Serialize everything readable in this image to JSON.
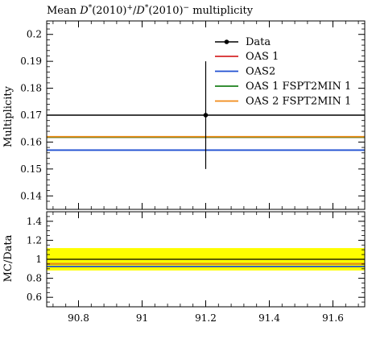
{
  "chart_data": [
    {
      "type": "line",
      "panel": "main",
      "title": "Mean D*(2010)+/D*(2010)− multiplicity",
      "title_parts": {
        "prefix": "Mean ",
        "d1": "D",
        "star1": "*",
        "mid1": "(2010)",
        "sup1": "+",
        "slash": "/",
        "d2": "D",
        "star2": "*",
        "mid2": "(2010)",
        "sup2": "−",
        "suffix": " multiplicity"
      },
      "ylabel": "Multiplicity",
      "xlim": [
        90.7,
        91.7
      ],
      "ylim": [
        0.135,
        0.205
      ],
      "yticks": [
        0.14,
        0.15,
        0.16,
        0.17,
        0.18,
        0.19,
        0.2
      ],
      "ytick_labels": [
        "0.14",
        "0.15",
        "0.16",
        "0.17",
        "0.18",
        "0.19",
        "0.2"
      ],
      "grid": false,
      "legend_position": "top-right",
      "data_point": {
        "name": "Data",
        "x": 91.2,
        "y": 0.17,
        "yerr_low": 0.15,
        "yerr_high": 0.19,
        "color": "#000000"
      },
      "series": [
        {
          "name": "OAS 1",
          "y": 0.1618,
          "color": "#d62728"
        },
        {
          "name": "OAS2",
          "y": 0.157,
          "color": "#1f4fd1"
        },
        {
          "name": "OAS 1 FSPT2MIN 1",
          "y": 0.1618,
          "color": "#1a7f1a"
        },
        {
          "name": "OAS 2 FSPT2MIN 1",
          "y": 0.162,
          "color": "#f08a16"
        }
      ],
      "legend": {
        "data_label": "Data",
        "series_labels": [
          "OAS 1",
          "OAS2",
          "OAS 1 FSPT2MIN 1",
          "OAS 2 FSPT2MIN 1"
        ]
      }
    },
    {
      "type": "line",
      "panel": "ratio",
      "ylabel": "MC/Data",
      "xlim": [
        90.7,
        91.7
      ],
      "ylim": [
        0.5,
        1.5
      ],
      "yticks": [
        0.6,
        0.8,
        1.0,
        1.2,
        1.4
      ],
      "ytick_labels": [
        "0.6",
        "0.8",
        "1",
        "1.2",
        "1.4"
      ],
      "xticks": [
        90.8,
        91.0,
        91.2,
        91.4,
        91.6
      ],
      "xtick_labels": [
        "90.8",
        "91",
        "91.2",
        "91.4",
        "91.6"
      ],
      "band": {
        "low": 0.882,
        "high": 1.118,
        "color": "#ffff00"
      },
      "reference_line": {
        "y": 1.0,
        "color": "#000000"
      },
      "series": [
        {
          "name": "OAS 1",
          "y": 0.952,
          "color": "#d62728"
        },
        {
          "name": "OAS2",
          "y": 0.924,
          "color": "#1f4fd1"
        },
        {
          "name": "OAS 1 FSPT2MIN 1",
          "y": 0.952,
          "color": "#1a7f1a"
        },
        {
          "name": "OAS 2 FSPT2MIN 1",
          "y": 0.953,
          "color": "#f08a16"
        }
      ]
    }
  ]
}
